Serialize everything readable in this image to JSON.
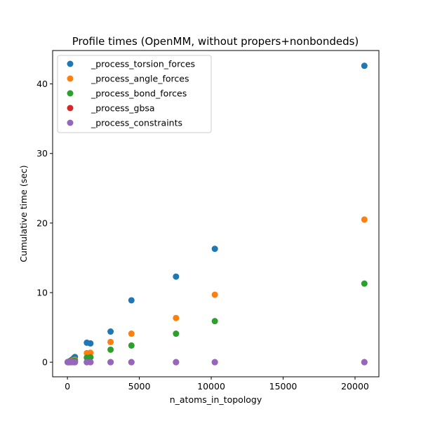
{
  "chart_data": {
    "type": "scatter",
    "title": "Profile times (OpenMM, without propers+nonbondeds)",
    "xlabel": "n_atoms_in_topology",
    "ylabel": "Cumulative time (sec)",
    "xlim": [
      -1030,
      21660
    ],
    "ylim": [
      -2.1,
      44.8
    ],
    "xticks": [
      0,
      5000,
      10000,
      15000,
      20000
    ],
    "yticks": [
      0,
      10,
      20,
      30,
      40
    ],
    "grid": false,
    "legend_position": "upper-left",
    "series": [
      {
        "name": "_process_torsion_forces",
        "color": "#1f77b4",
        "x": [
          22,
          60,
          120,
          200,
          300,
          450,
          520,
          1350,
          1600,
          3000,
          4450,
          7550,
          10250,
          20650
        ],
        "y": [
          0.02,
          0.05,
          0.1,
          0.2,
          0.35,
          0.6,
          0.75,
          2.8,
          2.7,
          4.4,
          8.9,
          12.3,
          16.3,
          42.6
        ]
      },
      {
        "name": "_process_angle_forces",
        "color": "#ff7f0e",
        "x": [
          22,
          60,
          120,
          200,
          300,
          450,
          520,
          1350,
          1600,
          3000,
          4450,
          7550,
          10250,
          20650
        ],
        "y": [
          0.01,
          0.03,
          0.06,
          0.1,
          0.18,
          0.3,
          0.35,
          1.3,
          1.35,
          2.9,
          4.1,
          6.35,
          9.7,
          20.5
        ]
      },
      {
        "name": "_process_bond_forces",
        "color": "#2ca02c",
        "x": [
          22,
          60,
          120,
          200,
          300,
          450,
          520,
          1350,
          1600,
          3000,
          4450,
          7550,
          10250,
          20650
        ],
        "y": [
          0.01,
          0.02,
          0.04,
          0.06,
          0.1,
          0.18,
          0.2,
          0.65,
          0.7,
          1.8,
          2.4,
          4.1,
          5.9,
          11.3
        ]
      },
      {
        "name": "_process_gbsa",
        "color": "#d62728",
        "x": [
          22,
          60,
          120,
          200,
          300,
          450,
          520,
          1350,
          1600,
          3000,
          4450,
          7550,
          10250,
          20650
        ],
        "y": [
          0,
          0,
          0,
          0,
          0,
          0,
          0,
          0,
          0,
          0,
          0,
          0,
          0,
          0
        ]
      },
      {
        "name": "_process_constraints",
        "color": "#9467bd",
        "x": [
          22,
          60,
          120,
          200,
          300,
          450,
          520,
          1350,
          1600,
          3000,
          4450,
          7550,
          10250,
          20650
        ],
        "y": [
          0,
          0,
          0,
          0,
          0,
          0,
          0,
          0,
          0,
          0,
          0,
          0,
          0,
          0
        ]
      }
    ]
  }
}
